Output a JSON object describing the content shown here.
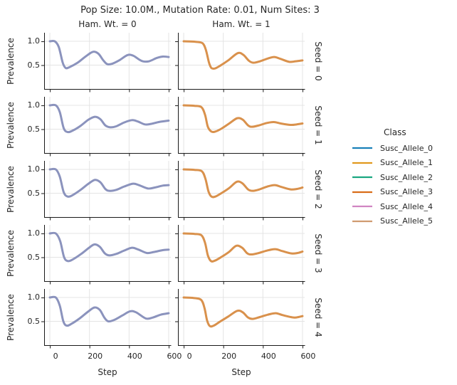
{
  "title": "Pop Size: 10.0M., Mutation Rate: 0.01, Num Sites: 3",
  "chart_data": {
    "type": "line",
    "title": "Pop Size: 10.0M., Mutation Rate: 0.01, Num Sites: 3",
    "col_headers": [
      "Ham. Wt. = 0",
      "Ham. Wt. = 1"
    ],
    "row_labels": [
      "Seed = 0",
      "Seed = 1",
      "Seed = 2",
      "Seed = 3",
      "Seed = 4"
    ],
    "xlabel": "Step",
    "ylabel": "Prevalence",
    "x_ticks": {
      "values": [
        0,
        200,
        400,
        600
      ],
      "labels": [
        "0",
        "200",
        "400",
        "600"
      ]
    },
    "y_ticks": {
      "values": [
        1.0,
        0.5
      ],
      "labels": [
        "1.0",
        "0.5"
      ]
    },
    "xlim": [
      -29,
      611
    ],
    "ylim": [
      0,
      1.18
    ],
    "grid": true,
    "grid_color": "#e4e4e4",
    "spine_color": "#1a1a1a",
    "line_colors": {
      "ham_wt_0": "#8b93bd",
      "ham_wt_1": "#d9914c"
    },
    "legend": {
      "title": "Class",
      "position": "center right",
      "entries": [
        {
          "label": "Susc_Allele_0",
          "color": "#0173B2"
        },
        {
          "label": "Susc_Allele_1",
          "color": "#DE8F05"
        },
        {
          "label": "Susc_Allele_2",
          "color": "#029E73"
        },
        {
          "label": "Susc_Allele_3",
          "color": "#D55E00"
        },
        {
          "label": "Susc_Allele_4",
          "color": "#CC78BC"
        },
        {
          "label": "Susc_Allele_5",
          "color": "#CA9161"
        }
      ]
    },
    "note": "All six Susc_Allele series overlap within each facet, appearing as one blended line per panel",
    "facets": [
      {
        "row": "Seed = 0",
        "col": "Ham. Wt. = 0",
        "points": [
          [
            0,
            1.0
          ],
          [
            25,
            1.0
          ],
          [
            45,
            0.88
          ],
          [
            65,
            0.55
          ],
          [
            80,
            0.44
          ],
          [
            100,
            0.46
          ],
          [
            140,
            0.55
          ],
          [
            180,
            0.68
          ],
          [
            218,
            0.78
          ],
          [
            245,
            0.74
          ],
          [
            270,
            0.6
          ],
          [
            290,
            0.52
          ],
          [
            315,
            0.53
          ],
          [
            350,
            0.6
          ],
          [
            392,
            0.71
          ],
          [
            420,
            0.7
          ],
          [
            450,
            0.62
          ],
          [
            470,
            0.58
          ],
          [
            500,
            0.58
          ],
          [
            540,
            0.65
          ],
          [
            570,
            0.68
          ],
          [
            600,
            0.67
          ]
        ]
      },
      {
        "row": "Seed = 0",
        "col": "Ham. Wt. = 1",
        "points": [
          [
            0,
            1.0
          ],
          [
            60,
            0.99
          ],
          [
            95,
            0.96
          ],
          [
            112,
            0.82
          ],
          [
            128,
            0.55
          ],
          [
            140,
            0.44
          ],
          [
            158,
            0.43
          ],
          [
            185,
            0.49
          ],
          [
            225,
            0.6
          ],
          [
            272,
            0.75
          ],
          [
            300,
            0.72
          ],
          [
            330,
            0.59
          ],
          [
            352,
            0.55
          ],
          [
            385,
            0.58
          ],
          [
            425,
            0.64
          ],
          [
            458,
            0.67
          ],
          [
            490,
            0.63
          ],
          [
            532,
            0.57
          ],
          [
            565,
            0.58
          ],
          [
            600,
            0.6
          ]
        ]
      },
      {
        "row": "Seed = 1",
        "col": "Ham. Wt. = 0",
        "points": [
          [
            0,
            1.0
          ],
          [
            30,
            1.0
          ],
          [
            50,
            0.86
          ],
          [
            70,
            0.52
          ],
          [
            90,
            0.44
          ],
          [
            115,
            0.47
          ],
          [
            155,
            0.57
          ],
          [
            195,
            0.7
          ],
          [
            228,
            0.76
          ],
          [
            255,
            0.71
          ],
          [
            280,
            0.58
          ],
          [
            305,
            0.54
          ],
          [
            335,
            0.56
          ],
          [
            375,
            0.64
          ],
          [
            415,
            0.69
          ],
          [
            445,
            0.66
          ],
          [
            480,
            0.6
          ],
          [
            510,
            0.61
          ],
          [
            550,
            0.65
          ],
          [
            600,
            0.68
          ]
        ]
      },
      {
        "row": "Seed = 1",
        "col": "Ham. Wt. = 1",
        "points": [
          [
            0,
            1.0
          ],
          [
            55,
            0.99
          ],
          [
            90,
            0.96
          ],
          [
            108,
            0.8
          ],
          [
            122,
            0.55
          ],
          [
            140,
            0.45
          ],
          [
            160,
            0.45
          ],
          [
            190,
            0.51
          ],
          [
            230,
            0.62
          ],
          [
            270,
            0.73
          ],
          [
            298,
            0.7
          ],
          [
            325,
            0.58
          ],
          [
            345,
            0.55
          ],
          [
            380,
            0.58
          ],
          [
            420,
            0.63
          ],
          [
            455,
            0.65
          ],
          [
            490,
            0.62
          ],
          [
            540,
            0.59
          ],
          [
            570,
            0.6
          ],
          [
            600,
            0.62
          ]
        ]
      },
      {
        "row": "Seed = 2",
        "col": "Ham. Wt. = 0",
        "points": [
          [
            0,
            1.0
          ],
          [
            30,
            1.0
          ],
          [
            50,
            0.85
          ],
          [
            70,
            0.52
          ],
          [
            90,
            0.43
          ],
          [
            115,
            0.46
          ],
          [
            155,
            0.57
          ],
          [
            195,
            0.7
          ],
          [
            228,
            0.78
          ],
          [
            255,
            0.73
          ],
          [
            280,
            0.59
          ],
          [
            300,
            0.55
          ],
          [
            335,
            0.57
          ],
          [
            375,
            0.64
          ],
          [
            420,
            0.7
          ],
          [
            450,
            0.67
          ],
          [
            495,
            0.6
          ],
          [
            530,
            0.62
          ],
          [
            570,
            0.66
          ],
          [
            600,
            0.67
          ]
        ]
      },
      {
        "row": "Seed = 2",
        "col": "Ham. Wt. = 1",
        "points": [
          [
            0,
            1.0
          ],
          [
            55,
            0.99
          ],
          [
            92,
            0.96
          ],
          [
            110,
            0.8
          ],
          [
            125,
            0.54
          ],
          [
            140,
            0.43
          ],
          [
            160,
            0.43
          ],
          [
            190,
            0.5
          ],
          [
            230,
            0.61
          ],
          [
            268,
            0.74
          ],
          [
            296,
            0.71
          ],
          [
            325,
            0.58
          ],
          [
            348,
            0.55
          ],
          [
            382,
            0.58
          ],
          [
            422,
            0.64
          ],
          [
            460,
            0.67
          ],
          [
            495,
            0.63
          ],
          [
            540,
            0.58
          ],
          [
            572,
            0.59
          ],
          [
            600,
            0.62
          ]
        ]
      },
      {
        "row": "Seed = 3",
        "col": "Ham. Wt. = 0",
        "points": [
          [
            0,
            1.0
          ],
          [
            30,
            1.0
          ],
          [
            52,
            0.84
          ],
          [
            72,
            0.5
          ],
          [
            92,
            0.42
          ],
          [
            118,
            0.46
          ],
          [
            158,
            0.57
          ],
          [
            198,
            0.7
          ],
          [
            225,
            0.77
          ],
          [
            252,
            0.72
          ],
          [
            278,
            0.58
          ],
          [
            300,
            0.54
          ],
          [
            335,
            0.57
          ],
          [
            375,
            0.64
          ],
          [
            415,
            0.7
          ],
          [
            448,
            0.66
          ],
          [
            490,
            0.59
          ],
          [
            525,
            0.61
          ],
          [
            570,
            0.65
          ],
          [
            600,
            0.66
          ]
        ]
      },
      {
        "row": "Seed = 3",
        "col": "Ham. Wt. = 1",
        "points": [
          [
            0,
            1.0
          ],
          [
            55,
            0.99
          ],
          [
            90,
            0.96
          ],
          [
            108,
            0.8
          ],
          [
            122,
            0.54
          ],
          [
            138,
            0.42
          ],
          [
            158,
            0.43
          ],
          [
            188,
            0.5
          ],
          [
            228,
            0.61
          ],
          [
            265,
            0.74
          ],
          [
            295,
            0.7
          ],
          [
            322,
            0.58
          ],
          [
            345,
            0.56
          ],
          [
            380,
            0.59
          ],
          [
            420,
            0.64
          ],
          [
            462,
            0.67
          ],
          [
            498,
            0.63
          ],
          [
            545,
            0.58
          ],
          [
            575,
            0.59
          ],
          [
            600,
            0.62
          ]
        ]
      },
      {
        "row": "Seed = 4",
        "col": "Ham. Wt. = 0",
        "points": [
          [
            0,
            1.0
          ],
          [
            30,
            1.0
          ],
          [
            50,
            0.83
          ],
          [
            68,
            0.5
          ],
          [
            85,
            0.41
          ],
          [
            110,
            0.45
          ],
          [
            150,
            0.56
          ],
          [
            192,
            0.7
          ],
          [
            225,
            0.79
          ],
          [
            252,
            0.74
          ],
          [
            275,
            0.58
          ],
          [
            295,
            0.5
          ],
          [
            325,
            0.53
          ],
          [
            365,
            0.62
          ],
          [
            405,
            0.71
          ],
          [
            435,
            0.69
          ],
          [
            485,
            0.56
          ],
          [
            520,
            0.58
          ],
          [
            560,
            0.64
          ],
          [
            600,
            0.67
          ]
        ]
      },
      {
        "row": "Seed = 4",
        "col": "Ham. Wt. = 1",
        "points": [
          [
            0,
            1.0
          ],
          [
            50,
            0.99
          ],
          [
            88,
            0.95
          ],
          [
            105,
            0.78
          ],
          [
            118,
            0.52
          ],
          [
            132,
            0.4
          ],
          [
            152,
            0.41
          ],
          [
            182,
            0.49
          ],
          [
            225,
            0.6
          ],
          [
            270,
            0.72
          ],
          [
            298,
            0.69
          ],
          [
            325,
            0.58
          ],
          [
            348,
            0.55
          ],
          [
            385,
            0.59
          ],
          [
            425,
            0.64
          ],
          [
            465,
            0.67
          ],
          [
            500,
            0.63
          ],
          [
            555,
            0.58
          ],
          [
            580,
            0.59
          ],
          [
            600,
            0.61
          ]
        ]
      }
    ]
  }
}
